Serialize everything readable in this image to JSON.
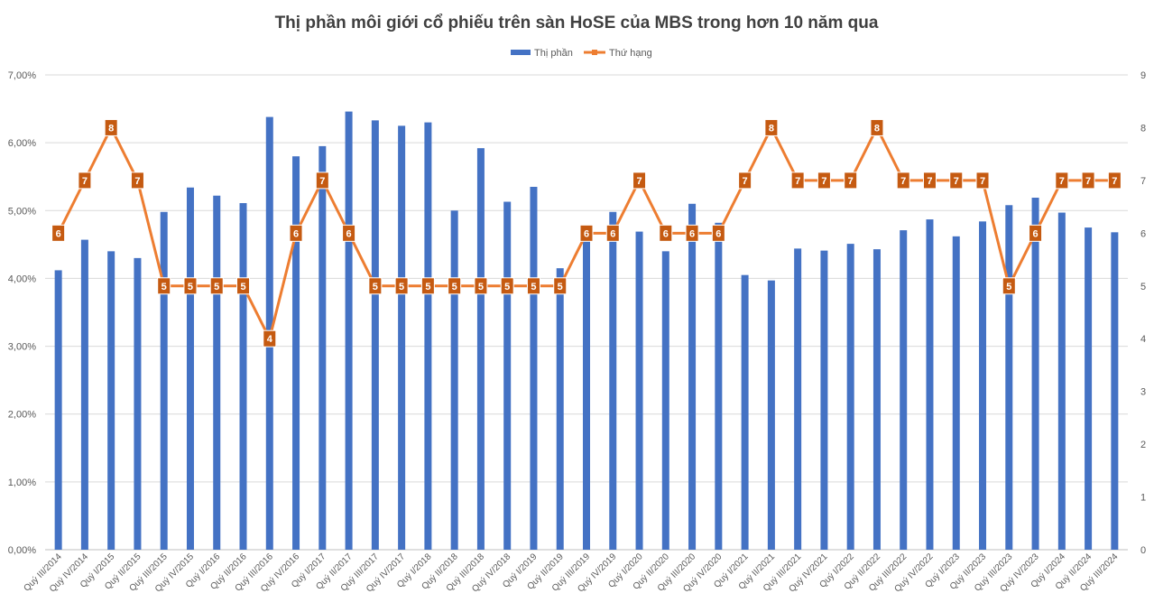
{
  "chart_data": {
    "type": "bar",
    "title": "Thị phần môi giới cổ phiếu trên sàn HoSE của MBS trong hơn 10 năm qua",
    "legend_position": "top",
    "grid": true,
    "categories": [
      "Quý III/2014",
      "Quý IV/2014",
      "Quý I/2015",
      "Quý II/2015",
      "Quý III/2015",
      "Quý IV/2015",
      "Quý I/2016",
      "Quý II/2016",
      "Quý III/2016",
      "Quý IV/2016",
      "Quý I/2017",
      "Quý II/2017",
      "Quý III/2017",
      "Quý IV/2017",
      "Quý I/2018",
      "Quý II/2018",
      "Quý III/2018",
      "Quý IV/2018",
      "Quý I/2019",
      "Quý II/2019",
      "Quý III/2019",
      "Quý IV/2019",
      "Quý I/2020",
      "Quý II/2020",
      "Quý III/2020",
      "Quý IV/2020",
      "Quý I/2021",
      "Quý II/2021",
      "Quý III/2021",
      "Quý IV/2021",
      "Quý I/2022",
      "Quý II/2022",
      "Quý III/2022",
      "Quý IV/2022",
      "Quý I/2023",
      "Quý II/2023",
      "Quý III/2023",
      "Quý IV/2023",
      "Quý I/2024",
      "Quý II/2024",
      "Quý III/2024"
    ],
    "series": [
      {
        "name": "Thị phần",
        "type": "bar",
        "axis": "left",
        "color": "#4472C4",
        "values": [
          4.12,
          4.57,
          4.4,
          4.3,
          4.98,
          5.34,
          5.22,
          5.11,
          6.38,
          5.8,
          5.95,
          6.46,
          6.33,
          6.25,
          6.3,
          5.0,
          5.92,
          5.13,
          5.35,
          4.15,
          4.68,
          4.98,
          4.69,
          4.4,
          5.1,
          4.82,
          4.05,
          3.97,
          4.44,
          4.41,
          4.51,
          4.43,
          4.71,
          4.87,
          4.62,
          4.84,
          5.08,
          5.19,
          4.97,
          4.75,
          4.68
        ]
      },
      {
        "name": "Thứ hạng",
        "type": "line",
        "axis": "right",
        "color": "#ED7D31",
        "label_color": "#C55A11",
        "values": [
          6,
          7,
          8,
          7,
          5,
          5,
          5,
          5,
          4,
          6,
          7,
          6,
          5,
          5,
          5,
          5,
          5,
          5,
          5,
          5,
          6,
          6,
          7,
          6,
          6,
          6,
          7,
          8,
          7,
          7,
          7,
          8,
          7,
          7,
          7,
          7,
          5,
          6,
          7,
          7,
          7
        ]
      }
    ],
    "y_left": {
      "min": 0,
      "max": 7,
      "ticks": [
        "0,00%",
        "1,00%",
        "2,00%",
        "3,00%",
        "4,00%",
        "5,00%",
        "6,00%",
        "7,00%"
      ]
    },
    "y_right": {
      "min": 0,
      "max": 9,
      "ticks": [
        "0",
        "1",
        "2",
        "3",
        "4",
        "5",
        "6",
        "7",
        "8",
        "9"
      ]
    }
  }
}
